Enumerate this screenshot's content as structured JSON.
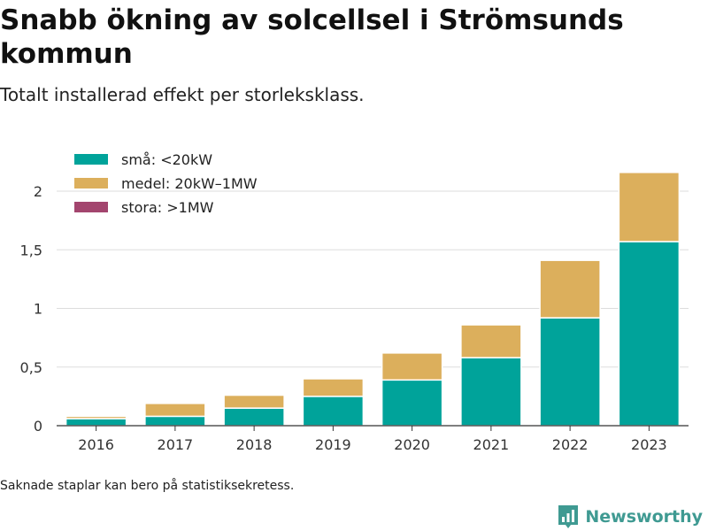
{
  "header": {
    "title": "Snabb ökning av solcellsel i Strömsunds kommun",
    "subtitle": "Totalt installerad effekt per storleksklass."
  },
  "footer": {
    "note": "Saknade staplar kan bero på statistiksekretess.",
    "brand": "Newsworthy"
  },
  "colors": {
    "sma": "#00a39a",
    "medel": "#dcaf5c",
    "stora": "#a3456e",
    "grid": "#dddddd",
    "axis": "#333333",
    "brand": "#3f9a92"
  },
  "icons": {
    "brand_logo": "newsworthy-logo-icon"
  },
  "chart_data": {
    "type": "bar",
    "stacked": true,
    "categories": [
      "2016",
      "2017",
      "2018",
      "2019",
      "2020",
      "2021",
      "2022",
      "2023"
    ],
    "series": [
      {
        "name": "små: <20kW",
        "values": [
          0.06,
          0.08,
          0.15,
          0.25,
          0.39,
          0.58,
          0.92,
          1.57
        ]
      },
      {
        "name": "medel: 20kW–1MW",
        "values": [
          0.02,
          0.11,
          0.11,
          0.15,
          0.23,
          0.28,
          0.49,
          0.59
        ]
      },
      {
        "name": "stora: >1MW",
        "values": [
          0,
          0,
          0,
          0,
          0,
          0,
          0,
          0
        ]
      }
    ],
    "yticks": [
      0,
      0.5,
      1,
      1.5,
      2
    ],
    "ytick_labels": [
      "0",
      "0,5",
      "1",
      "1,5",
      "2"
    ],
    "ylim": [
      0,
      2.3
    ],
    "grid": true,
    "legend_position": "top-left"
  }
}
